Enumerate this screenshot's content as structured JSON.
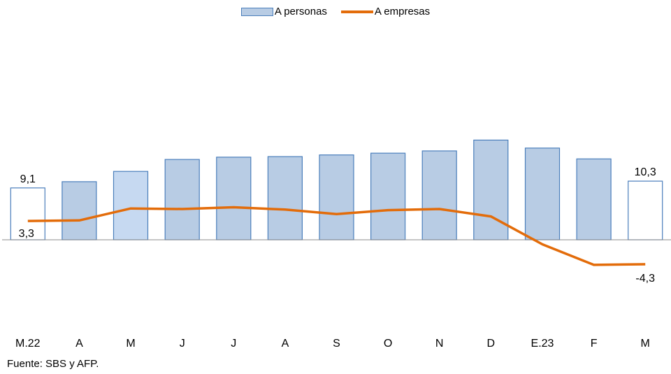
{
  "chart_data": {
    "type": "bar",
    "categories": [
      "M.22",
      "A",
      "M",
      "J",
      "J",
      "A",
      "S",
      "O",
      "N",
      "D",
      "E.23",
      "F",
      "M"
    ],
    "series": [
      {
        "name": "A personas",
        "type": "bar",
        "values": [
          9.1,
          10.2,
          12.0,
          14.1,
          14.5,
          14.6,
          14.9,
          15.2,
          15.6,
          17.5,
          16.1,
          14.2,
          10.3
        ],
        "color": "#b8cce4",
        "border": "#4a7ebb",
        "highlight_color": "#c6d9f1",
        "outlined_indices": [
          0,
          12
        ],
        "highlight_indices": [
          2
        ]
      },
      {
        "name": "A empresas",
        "type": "line",
        "values": [
          3.3,
          3.4,
          5.5,
          5.4,
          5.7,
          5.3,
          4.5,
          5.2,
          5.4,
          4.1,
          -0.8,
          -4.4,
          -4.3
        ],
        "color": "#e36c0a"
      }
    ],
    "data_labels": [
      {
        "series": 0,
        "index": 0,
        "text": "9,1"
      },
      {
        "series": 0,
        "index": 12,
        "text": "10,3"
      },
      {
        "series": 1,
        "index": 0,
        "text": "3,3"
      },
      {
        "series": 1,
        "index": 12,
        "text": "-4,3"
      }
    ],
    "ylim": [
      -8.0,
      18.0
    ],
    "grid": false,
    "legend": "top-center"
  },
  "legend": {
    "personas": "A personas",
    "empresas": "A empresas"
  },
  "source": "Fuente: SBS y AFP."
}
